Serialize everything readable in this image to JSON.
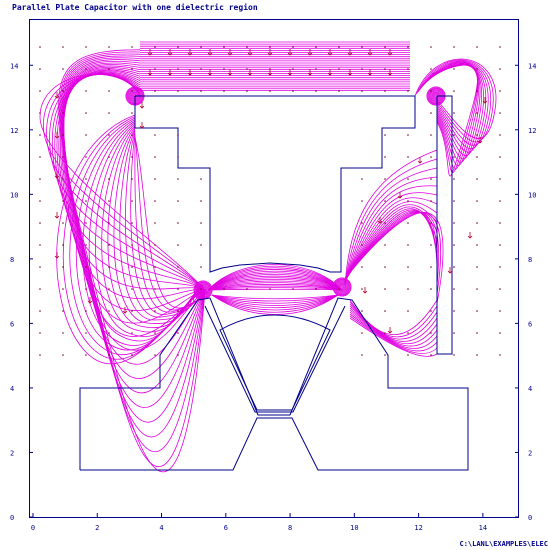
{
  "title": "Parallel Plate Capacitor with one dielectric region",
  "file_path": "C:\\LANL\\EXAMPLES\\ELEC",
  "axes": {
    "x_ticks": [
      "0",
      "2",
      "4",
      "6",
      "8",
      "10",
      "12",
      "14"
    ],
    "y_ticks": [
      "0",
      "2",
      "4",
      "6",
      "8",
      "10",
      "12",
      "14"
    ],
    "x_range": [
      0,
      15
    ],
    "y_range": [
      0,
      15
    ]
  },
  "colors": {
    "frame": "#00008b",
    "geometry": "#00008b",
    "field_lines": "#e100e1",
    "arrows": "#b0002a",
    "dots": "#7a0030"
  }
}
